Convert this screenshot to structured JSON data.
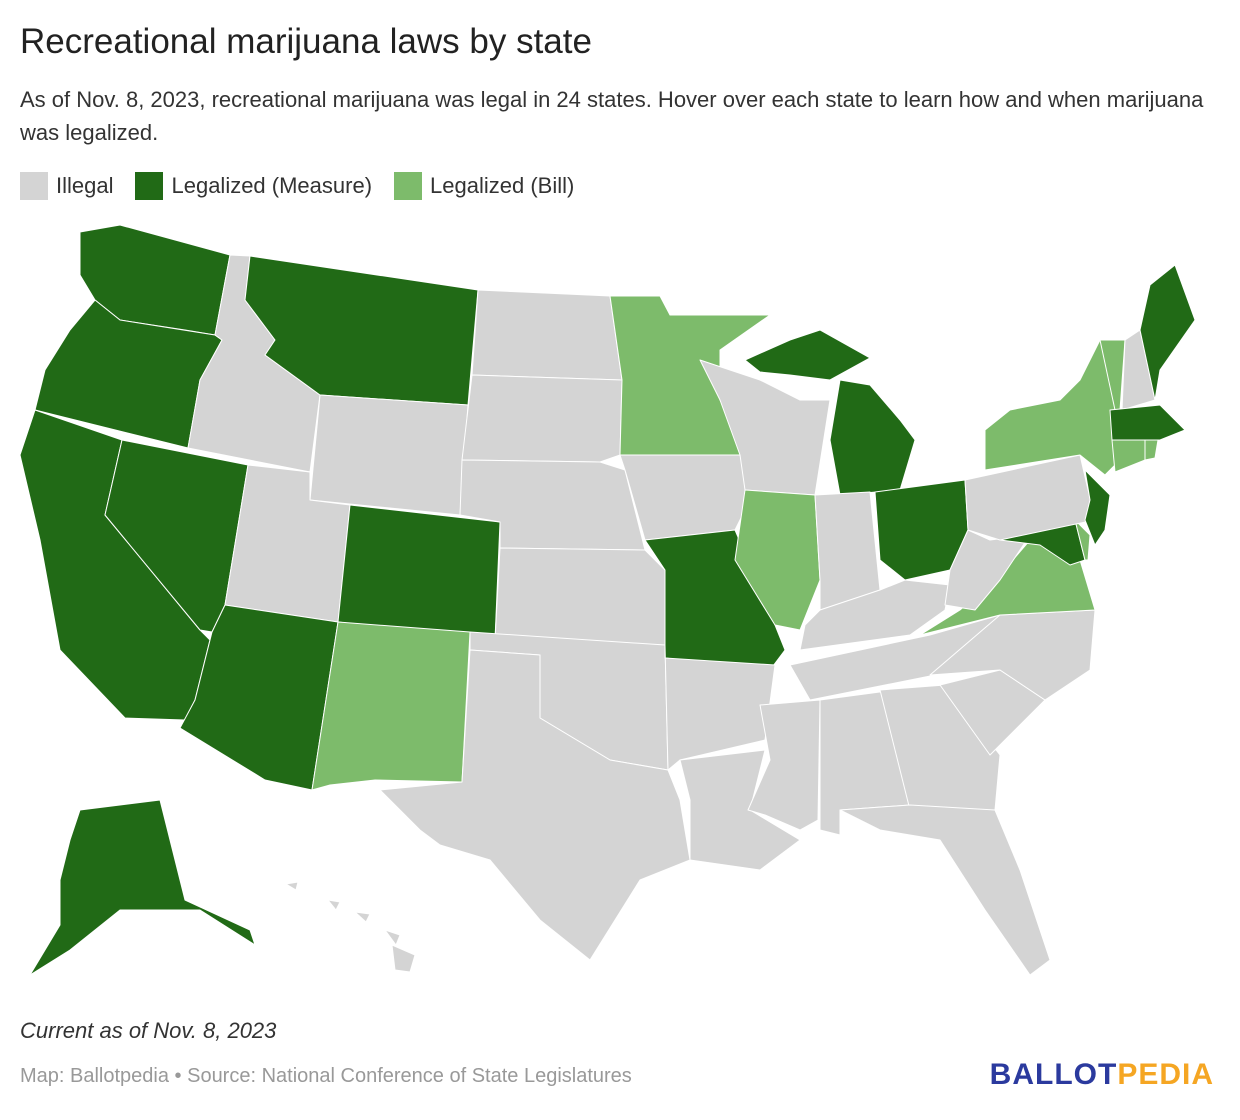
{
  "title": "Recreational marijuana laws by state",
  "subtitle": "As of Nov. 8, 2023, recreational marijuana was legal in 24 states. Hover over each state to learn how and when marijuana was legalized.",
  "legend": [
    {
      "label": "Illegal",
      "color": "#d4d4d4",
      "key": "illegal"
    },
    {
      "label": "Legalized (Measure)",
      "color": "#216a16",
      "key": "measure"
    },
    {
      "label": "Legalized (Bill)",
      "color": "#7dbb6b",
      "key": "bill"
    }
  ],
  "states": {
    "WA": "measure",
    "OR": "measure",
    "CA": "measure",
    "NV": "measure",
    "AZ": "measure",
    "MT": "measure",
    "CO": "measure",
    "AK": "measure",
    "MI": "measure",
    "MO": "measure",
    "OH": "measure",
    "NJ": "measure",
    "MD": "measure",
    "ME": "measure",
    "MA": "measure",
    "MN": "bill",
    "IL": "bill",
    "NM": "bill",
    "VT": "bill",
    "NY": "bill",
    "CT": "bill",
    "RI": "bill",
    "DE": "bill",
    "VA": "bill",
    "ID": "illegal",
    "UT": "illegal",
    "WY": "illegal",
    "ND": "illegal",
    "SD": "illegal",
    "NE": "illegal",
    "KS": "illegal",
    "OK": "illegal",
    "TX": "illegal",
    "IA": "illegal",
    "AR": "illegal",
    "LA": "illegal",
    "WI": "illegal",
    "IN": "illegal",
    "KY": "illegal",
    "TN": "illegal",
    "MS": "illegal",
    "AL": "illegal",
    "GA": "illegal",
    "FL": "illegal",
    "SC": "illegal",
    "NC": "illegal",
    "WV": "illegal",
    "PA": "illegal",
    "NH": "illegal",
    "HI": "illegal"
  },
  "note": "Current as of Nov. 8, 2023",
  "source": "Map: Ballotpedia • Source: National Conference of State Legislatures",
  "logo": {
    "part1": "BALLOT",
    "part2": "PEDIA"
  }
}
